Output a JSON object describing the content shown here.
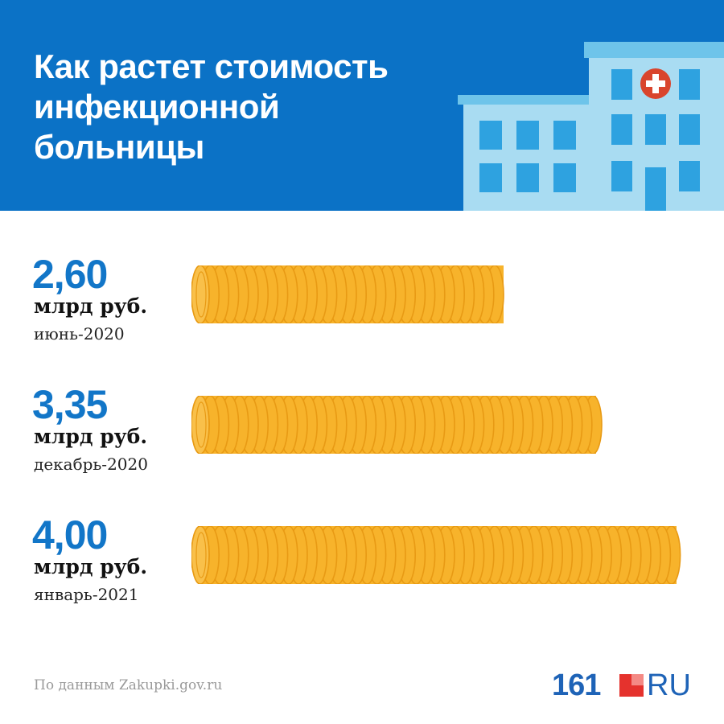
{
  "header": {
    "title_lines": [
      "Как растет стоимость",
      "инфекционной",
      "больницы"
    ]
  },
  "colors": {
    "header_bg": "#0b72c6",
    "value_blue": "#1276c8",
    "coin_gold": "#f7b32b",
    "coin_edge": "#e89a14",
    "logo_blue": "#1e63b7",
    "logo_red": "#e5322d"
  },
  "chart_data": {
    "type": "bar",
    "orientation": "horizontal",
    "categories": [
      "июнь-2020",
      "декабрь-2020",
      "январь-2021"
    ],
    "values": [
      2.6,
      3.35,
      4.0
    ],
    "value_labels": [
      "2,60",
      "3,35",
      "4,00"
    ],
    "unit": "млрд руб.",
    "xlim": [
      0,
      4.0
    ]
  },
  "footer": {
    "source": "По данным Zakupki.gov.ru",
    "logo_number": "161",
    "logo_suffix": "RU"
  },
  "icons": {
    "illustration": "hospital-building-icon",
    "cross": "medical-cross-icon"
  }
}
